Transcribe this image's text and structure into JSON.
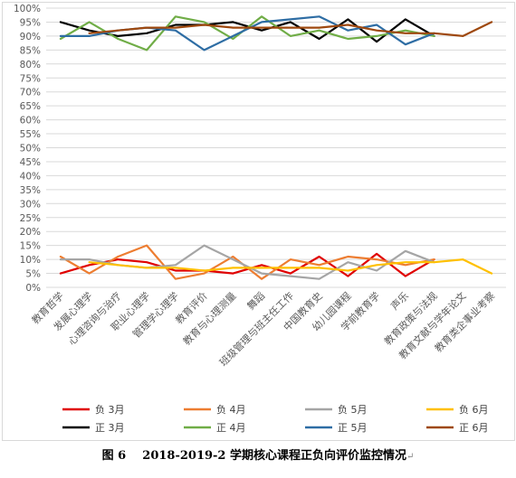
{
  "caption": {
    "figure_no": "图 6",
    "title": "2018-2019-2 学期核心课程正负向评价监控情况",
    "return_mark": "↵"
  },
  "colors": {
    "neg_mar": "#e00000",
    "neg_apr": "#ed7d31",
    "neg_may": "#a5a5a5",
    "neg_jun": "#ffc000",
    "pos_mar": "#000000",
    "pos_apr": "#70ad47",
    "pos_may": "#2e6da4",
    "pos_jun": "#9e480e",
    "grid": "#d9d9d9",
    "axis_text": "#595959"
  },
  "chart_data": {
    "type": "line",
    "title": "",
    "xlabel": "",
    "ylabel": "",
    "ylim": [
      0,
      100
    ],
    "y_ticks": [
      "0%",
      "5%",
      "10%",
      "15%",
      "20%",
      "25%",
      "30%",
      "35%",
      "40%",
      "45%",
      "50%",
      "55%",
      "60%",
      "65%",
      "70%",
      "75%",
      "80%",
      "85%",
      "90%",
      "95%",
      "100%"
    ],
    "grid": true,
    "legend_position": "bottom",
    "categories": [
      "教育哲学",
      "发展心理学",
      "心理咨询与治疗",
      "职业心理学",
      "管理学心理学",
      "教育评价",
      "教育与心理测量",
      "舞蹈",
      "班级管理与班主任工作",
      "中国教育史",
      "幼儿园课程",
      "学前教育学",
      "声乐",
      "教育政策与法规",
      "教育文献与学年论文",
      "教育类企事业考察"
    ],
    "series": [
      {
        "name": "负 3月",
        "color_key": "neg_mar",
        "values": [
          5,
          8,
          10,
          9,
          6,
          6,
          5,
          8,
          5,
          11,
          4,
          12,
          4,
          10,
          null,
          null
        ]
      },
      {
        "name": "负 4月",
        "color_key": "neg_apr",
        "values": [
          11,
          5,
          11,
          15,
          3,
          5,
          11,
          3,
          10,
          8,
          11,
          10,
          8,
          10,
          null,
          null
        ]
      },
      {
        "name": "负 5月",
        "color_key": "neg_may",
        "values": [
          10,
          10,
          8,
          7,
          8,
          15,
          10,
          5,
          4,
          3,
          9,
          6,
          13,
          9,
          null,
          null
        ]
      },
      {
        "name": "负 6月",
        "color_key": "neg_jun",
        "values": [
          null,
          9,
          8,
          7,
          7,
          6,
          7,
          7,
          7,
          7,
          6,
          8,
          9,
          9,
          10,
          5
        ]
      },
      {
        "name": "正 3月",
        "color_key": "pos_mar",
        "values": [
          95,
          92,
          90,
          91,
          94,
          94,
          95,
          92,
          95,
          89,
          96,
          88,
          96,
          90,
          null,
          null
        ]
      },
      {
        "name": "正 4月",
        "color_key": "pos_apr",
        "values": [
          89,
          95,
          89,
          85,
          97,
          95,
          89,
          97,
          90,
          92,
          89,
          90,
          92,
          90,
          null,
          null
        ]
      },
      {
        "name": "正 5月",
        "color_key": "pos_may",
        "values": [
          90,
          90,
          92,
          93,
          92,
          85,
          90,
          95,
          96,
          97,
          92,
          94,
          87,
          91,
          null,
          null
        ]
      },
      {
        "name": "正 6月",
        "color_key": "pos_jun",
        "values": [
          null,
          91,
          92,
          93,
          93,
          94,
          93,
          93,
          93,
          93,
          94,
          92,
          91,
          91,
          90,
          95
        ]
      }
    ]
  }
}
